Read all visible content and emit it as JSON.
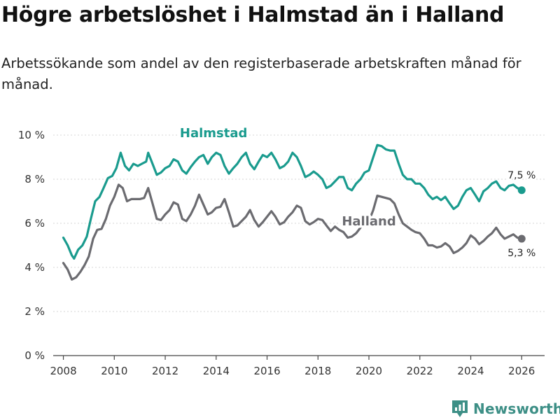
{
  "title": "Högre arbetslöshet i Halmstad än i Halland",
  "subtitle": "Arbetssökande som andel av den registerbaserade arbetskraften månad för månad.",
  "brand": {
    "name": "Newsworthy",
    "color": "#3d8f86",
    "icon": "newsworthy-logo-icon"
  },
  "colors": {
    "halmstad": "#1a9b8e",
    "halland": "#6b6b70",
    "grid": "#d6d6d6",
    "axis": "#444444"
  },
  "chart_data": {
    "type": "line",
    "title": "Högre arbetslöshet i Halmstad än i Halland",
    "xlabel": "",
    "ylabel": "",
    "xlim": [
      2007.6,
      2026.9
    ],
    "ylim": [
      0,
      10
    ],
    "x_ticks": [
      2008,
      2010,
      2012,
      2014,
      2016,
      2018,
      2020,
      2022,
      2024,
      2026
    ],
    "x_tick_labels": [
      "2008",
      "2010",
      "2012",
      "2014",
      "2016",
      "2018",
      "2020",
      "2022",
      "2024",
      "2026"
    ],
    "y_ticks": [
      0,
      2,
      4,
      6,
      8,
      10
    ],
    "y_tick_labels": [
      "0 %",
      "2 %",
      "4 %",
      "6 %",
      "8 %",
      "10 %"
    ],
    "grid": true,
    "series": [
      {
        "name": "Halmstad",
        "end_label": "7,5 %",
        "points": [
          [
            2008.0,
            5.35
          ],
          [
            2008.17,
            5.0
          ],
          [
            2008.33,
            4.55
          ],
          [
            2008.42,
            4.4
          ],
          [
            2008.58,
            4.8
          ],
          [
            2008.75,
            5.0
          ],
          [
            2008.92,
            5.4
          ],
          [
            2009.08,
            6.2
          ],
          [
            2009.25,
            7.0
          ],
          [
            2009.42,
            7.2
          ],
          [
            2009.58,
            7.6
          ],
          [
            2009.75,
            8.05
          ],
          [
            2009.92,
            8.15
          ],
          [
            2010.08,
            8.5
          ],
          [
            2010.25,
            9.2
          ],
          [
            2010.42,
            8.6
          ],
          [
            2010.58,
            8.4
          ],
          [
            2010.75,
            8.7
          ],
          [
            2010.92,
            8.6
          ],
          [
            2011.08,
            8.7
          ],
          [
            2011.25,
            8.8
          ],
          [
            2011.33,
            9.2
          ],
          [
            2011.5,
            8.7
          ],
          [
            2011.67,
            8.2
          ],
          [
            2011.83,
            8.3
          ],
          [
            2012.0,
            8.5
          ],
          [
            2012.17,
            8.6
          ],
          [
            2012.33,
            8.9
          ],
          [
            2012.5,
            8.8
          ],
          [
            2012.67,
            8.4
          ],
          [
            2012.83,
            8.25
          ],
          [
            2013.0,
            8.55
          ],
          [
            2013.17,
            8.8
          ],
          [
            2013.33,
            9.0
          ],
          [
            2013.5,
            9.1
          ],
          [
            2013.67,
            8.7
          ],
          [
            2013.83,
            9.0
          ],
          [
            2014.0,
            9.2
          ],
          [
            2014.17,
            9.1
          ],
          [
            2014.33,
            8.6
          ],
          [
            2014.5,
            8.25
          ],
          [
            2014.67,
            8.5
          ],
          [
            2014.83,
            8.7
          ],
          [
            2015.0,
            9.0
          ],
          [
            2015.17,
            9.2
          ],
          [
            2015.33,
            8.7
          ],
          [
            2015.5,
            8.45
          ],
          [
            2015.67,
            8.8
          ],
          [
            2015.83,
            9.1
          ],
          [
            2016.0,
            9.0
          ],
          [
            2016.17,
            9.2
          ],
          [
            2016.33,
            8.9
          ],
          [
            2016.5,
            8.5
          ],
          [
            2016.67,
            8.6
          ],
          [
            2016.83,
            8.8
          ],
          [
            2017.0,
            9.2
          ],
          [
            2017.17,
            9.0
          ],
          [
            2017.33,
            8.6
          ],
          [
            2017.5,
            8.1
          ],
          [
            2017.67,
            8.2
          ],
          [
            2017.83,
            8.35
          ],
          [
            2018.0,
            8.2
          ],
          [
            2018.17,
            8.0
          ],
          [
            2018.33,
            7.6
          ],
          [
            2018.5,
            7.7
          ],
          [
            2018.67,
            7.9
          ],
          [
            2018.83,
            8.1
          ],
          [
            2019.0,
            8.1
          ],
          [
            2019.17,
            7.6
          ],
          [
            2019.33,
            7.5
          ],
          [
            2019.5,
            7.8
          ],
          [
            2019.67,
            8.0
          ],
          [
            2019.83,
            8.3
          ],
          [
            2020.0,
            8.4
          ],
          [
            2020.17,
            9.0
          ],
          [
            2020.33,
            9.55
          ],
          [
            2020.5,
            9.5
          ],
          [
            2020.67,
            9.35
          ],
          [
            2020.83,
            9.3
          ],
          [
            2021.0,
            9.3
          ],
          [
            2021.17,
            8.7
          ],
          [
            2021.33,
            8.2
          ],
          [
            2021.5,
            8.0
          ],
          [
            2021.67,
            8.0
          ],
          [
            2021.83,
            7.8
          ],
          [
            2022.0,
            7.8
          ],
          [
            2022.17,
            7.6
          ],
          [
            2022.33,
            7.3
          ],
          [
            2022.5,
            7.1
          ],
          [
            2022.67,
            7.2
          ],
          [
            2022.83,
            7.05
          ],
          [
            2023.0,
            7.2
          ],
          [
            2023.17,
            6.9
          ],
          [
            2023.33,
            6.65
          ],
          [
            2023.5,
            6.8
          ],
          [
            2023.67,
            7.2
          ],
          [
            2023.83,
            7.5
          ],
          [
            2024.0,
            7.6
          ],
          [
            2024.17,
            7.3
          ],
          [
            2024.33,
            7.0
          ],
          [
            2024.5,
            7.45
          ],
          [
            2024.67,
            7.6
          ],
          [
            2024.83,
            7.8
          ],
          [
            2025.0,
            7.9
          ],
          [
            2025.17,
            7.6
          ],
          [
            2025.33,
            7.5
          ],
          [
            2025.5,
            7.7
          ],
          [
            2025.67,
            7.75
          ],
          [
            2025.83,
            7.6
          ],
          [
            2026.0,
            7.5
          ]
        ]
      },
      {
        "name": "Halland",
        "end_label": "5,3 %",
        "points": [
          [
            2008.0,
            4.2
          ],
          [
            2008.17,
            3.9
          ],
          [
            2008.33,
            3.45
          ],
          [
            2008.5,
            3.55
          ],
          [
            2008.67,
            3.8
          ],
          [
            2008.83,
            4.1
          ],
          [
            2009.0,
            4.5
          ],
          [
            2009.17,
            5.3
          ],
          [
            2009.33,
            5.7
          ],
          [
            2009.5,
            5.75
          ],
          [
            2009.67,
            6.2
          ],
          [
            2009.83,
            6.8
          ],
          [
            2010.0,
            7.2
          ],
          [
            2010.17,
            7.75
          ],
          [
            2010.33,
            7.6
          ],
          [
            2010.5,
            7.0
          ],
          [
            2010.67,
            7.1
          ],
          [
            2010.83,
            7.1
          ],
          [
            2011.0,
            7.1
          ],
          [
            2011.17,
            7.15
          ],
          [
            2011.33,
            7.6
          ],
          [
            2011.5,
            6.9
          ],
          [
            2011.67,
            6.2
          ],
          [
            2011.83,
            6.15
          ],
          [
            2012.0,
            6.4
          ],
          [
            2012.17,
            6.6
          ],
          [
            2012.33,
            6.95
          ],
          [
            2012.5,
            6.85
          ],
          [
            2012.67,
            6.2
          ],
          [
            2012.83,
            6.1
          ],
          [
            2013.0,
            6.4
          ],
          [
            2013.17,
            6.8
          ],
          [
            2013.33,
            7.3
          ],
          [
            2013.5,
            6.85
          ],
          [
            2013.67,
            6.4
          ],
          [
            2013.83,
            6.5
          ],
          [
            2014.0,
            6.7
          ],
          [
            2014.17,
            6.75
          ],
          [
            2014.33,
            7.1
          ],
          [
            2014.5,
            6.5
          ],
          [
            2014.67,
            5.85
          ],
          [
            2014.83,
            5.9
          ],
          [
            2015.0,
            6.1
          ],
          [
            2015.17,
            6.3
          ],
          [
            2015.33,
            6.6
          ],
          [
            2015.5,
            6.15
          ],
          [
            2015.67,
            5.85
          ],
          [
            2015.83,
            6.05
          ],
          [
            2016.0,
            6.3
          ],
          [
            2016.17,
            6.55
          ],
          [
            2016.33,
            6.3
          ],
          [
            2016.5,
            5.95
          ],
          [
            2016.67,
            6.05
          ],
          [
            2016.83,
            6.3
          ],
          [
            2017.0,
            6.5
          ],
          [
            2017.17,
            6.8
          ],
          [
            2017.33,
            6.7
          ],
          [
            2017.5,
            6.1
          ],
          [
            2017.67,
            5.95
          ],
          [
            2017.83,
            6.05
          ],
          [
            2018.0,
            6.2
          ],
          [
            2018.17,
            6.15
          ],
          [
            2018.33,
            5.9
          ],
          [
            2018.5,
            5.65
          ],
          [
            2018.67,
            5.85
          ],
          [
            2018.83,
            5.7
          ],
          [
            2019.0,
            5.6
          ],
          [
            2019.17,
            5.35
          ],
          [
            2019.33,
            5.4
          ],
          [
            2019.5,
            5.55
          ],
          [
            2019.67,
            5.8
          ],
          [
            2019.83,
            6.0
          ],
          [
            2020.0,
            6.1
          ],
          [
            2020.17,
            6.6
          ],
          [
            2020.33,
            7.25
          ],
          [
            2020.5,
            7.2
          ],
          [
            2020.67,
            7.15
          ],
          [
            2020.83,
            7.1
          ],
          [
            2021.0,
            6.9
          ],
          [
            2021.17,
            6.4
          ],
          [
            2021.33,
            6.0
          ],
          [
            2021.5,
            5.85
          ],
          [
            2021.67,
            5.7
          ],
          [
            2021.83,
            5.6
          ],
          [
            2022.0,
            5.55
          ],
          [
            2022.17,
            5.3
          ],
          [
            2022.33,
            5.0
          ],
          [
            2022.5,
            5.0
          ],
          [
            2022.67,
            4.9
          ],
          [
            2022.83,
            4.95
          ],
          [
            2023.0,
            5.1
          ],
          [
            2023.17,
            4.95
          ],
          [
            2023.33,
            4.65
          ],
          [
            2023.5,
            4.75
          ],
          [
            2023.67,
            4.9
          ],
          [
            2023.83,
            5.1
          ],
          [
            2024.0,
            5.45
          ],
          [
            2024.17,
            5.3
          ],
          [
            2024.33,
            5.05
          ],
          [
            2024.5,
            5.2
          ],
          [
            2024.67,
            5.4
          ],
          [
            2024.83,
            5.55
          ],
          [
            2025.0,
            5.8
          ],
          [
            2025.17,
            5.5
          ],
          [
            2025.33,
            5.3
          ],
          [
            2025.5,
            5.4
          ],
          [
            2025.67,
            5.5
          ],
          [
            2025.83,
            5.35
          ],
          [
            2026.0,
            5.3
          ]
        ]
      }
    ]
  }
}
